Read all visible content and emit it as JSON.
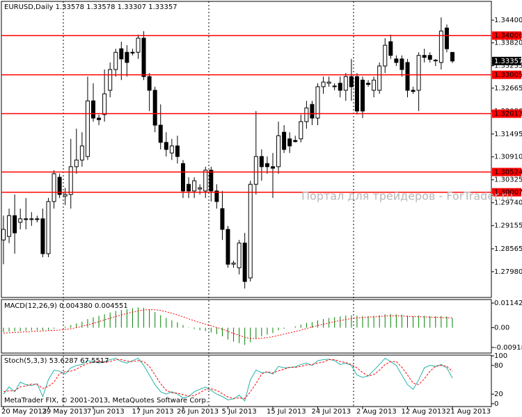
{
  "chart_data": [
    {
      "type": "candlestick",
      "title": "EURUSD,Daily  1.33578 1.33578 1.33307 1.33357",
      "watermark": "Портал для трейдеров - ForTrader.ru",
      "up_color": "#ffffff",
      "down_color": "#000000",
      "level_color": "#ff0000",
      "ylim": [
        1.27322,
        1.34879
      ],
      "yticks": [
        {
          "value": 1.344,
          "label": "1.34400"
        },
        {
          "value": 1.3382,
          "label": "1.33820"
        },
        1.33235,
        1.32665,
        {
          "value": 1.3208,
          "label": "1.32080"
        },
        1.31495,
        {
          "value": 1.3091,
          "label": "1.30910"
        },
        1.30325,
        {
          "value": 1.2974,
          "label": "1.29740"
        },
        1.29155,
        1.28565,
        {
          "value": 1.2798,
          "label": "1.27980"
        }
      ],
      "levels": [
        1.34006,
        1.33005,
        1.32013,
        1.30524,
        1.30007
      ],
      "categories": [
        "20 May 2013",
        null,
        null,
        null,
        null,
        null,
        null,
        null,
        "29 May 2013",
        null,
        null,
        null,
        null,
        null,
        null,
        null,
        "7 Jun 2013",
        null,
        null,
        null,
        null,
        null,
        null,
        null,
        "17 Jun 2013",
        null,
        null,
        null,
        null,
        null,
        null,
        null,
        "26 Jun 2013",
        null,
        null,
        null,
        null,
        null,
        null,
        null,
        "5 Jul 2013",
        null,
        null,
        null,
        null,
        null,
        null,
        null,
        "15 Jul 2013",
        null,
        null,
        null,
        null,
        null,
        null,
        null,
        "24 Jul 2013",
        null,
        null,
        null,
        null,
        null,
        null,
        null,
        "2 Aug 2013",
        null,
        null,
        null,
        null,
        null,
        null,
        null,
        "12 Aug 2013",
        null,
        null,
        null,
        null,
        null,
        null,
        null,
        "21 Aug 2013"
      ],
      "ohlc": [
        [
          1.2879,
          1.2941,
          1.2817,
          1.2906
        ],
        [
          1.2888,
          1.2959,
          1.2871,
          1.2941
        ],
        [
          1.2941,
          1.2995,
          1.2844,
          1.2897
        ],
        [
          1.2924,
          1.2959,
          1.2906,
          1.2933
        ],
        [
          1.2933,
          1.2986,
          1.2906,
          1.2931
        ],
        [
          1.2931,
          1.295,
          1.2915,
          1.2933
        ],
        [
          1.2933,
          1.2941,
          1.2924,
          1.2931
        ],
        [
          1.2933,
          1.2959,
          1.2835,
          1.2844
        ],
        [
          1.2844,
          1.2986,
          1.2835,
          1.2977
        ],
        [
          1.2977,
          1.3057,
          1.2959,
          1.3048
        ],
        [
          1.3039,
          1.3048,
          1.2986,
          1.2995
        ],
        [
          1.2991,
          1.3012,
          1.2968,
          1.2995
        ],
        [
          1.2995,
          1.3137,
          1.2959,
          1.3066
        ],
        [
          1.3066,
          1.3163,
          1.3048,
          1.3083
        ],
        [
          1.3083,
          1.3154,
          1.3066,
          1.3119
        ],
        [
          1.3092,
          1.3296,
          1.3083,
          1.3234
        ],
        [
          1.3234,
          1.3279,
          1.3181,
          1.319
        ],
        [
          1.319,
          1.3199,
          1.3172,
          1.3186
        ],
        [
          1.3199,
          1.3314,
          1.3181,
          1.3252
        ],
        [
          1.3261,
          1.3332,
          1.3243,
          1.3314
        ],
        [
          1.3314,
          1.3367,
          1.3296,
          1.3358
        ],
        [
          1.3367,
          1.3385,
          1.3287,
          1.3341
        ],
        [
          1.3358,
          1.3376,
          1.3296,
          1.3332
        ],
        [
          1.3358,
          1.3367,
          1.335,
          1.3356
        ],
        [
          1.3358,
          1.3403,
          1.3341,
          1.3394
        ],
        [
          1.3394,
          1.3412,
          1.3287,
          1.3296
        ],
        [
          1.3296,
          1.3305,
          1.3208,
          1.3261
        ],
        [
          1.3261,
          1.327,
          1.3154,
          1.3172
        ],
        [
          1.3172,
          1.3225,
          1.311,
          1.3128
        ],
        [
          1.3128,
          1.3154,
          1.3092,
          1.311
        ],
        [
          1.3101,
          1.3137,
          1.3083,
          1.3119
        ],
        [
          1.3119,
          1.3145,
          1.3074,
          1.3092
        ],
        [
          1.3074,
          1.3083,
          1.2986,
          1.3004
        ],
        [
          1.3021,
          1.3039,
          1.2986,
          1.3004
        ],
        [
          1.3004,
          1.3039,
          1.2986,
          1.303
        ],
        [
          1.3009,
          1.3021,
          1.2995,
          1.3012
        ],
        [
          1.3004,
          1.3066,
          1.2986,
          1.3057
        ],
        [
          1.3057,
          1.3066,
          1.2977,
          1.3004
        ],
        [
          1.3004,
          1.3021,
          1.2959,
          1.2977
        ],
        [
          1.2959,
          1.3004,
          1.2879,
          1.2906
        ],
        [
          1.2906,
          1.2915,
          1.2808,
          1.2817
        ],
        [
          1.2817,
          1.2826,
          1.2808,
          1.282
        ],
        [
          1.2808,
          1.2879,
          1.2791,
          1.2871
        ],
        [
          1.2871,
          1.2897,
          1.2755,
          1.2773
        ],
        [
          1.2782,
          1.303,
          1.2773,
          1.3021
        ],
        [
          1.3021,
          1.3208,
          1.2995,
          1.3092
        ],
        [
          1.3092,
          1.311,
          1.303,
          1.3066
        ],
        [
          1.3074,
          1.3092,
          1.3048,
          1.3066
        ],
        [
          1.3066,
          1.3101,
          1.2986,
          1.3062
        ],
        [
          1.3066,
          1.3181,
          1.3048,
          1.3145
        ],
        [
          1.3154,
          1.3172,
          1.3101,
          1.311
        ],
        [
          1.3137,
          1.3154,
          1.3101,
          1.3119
        ],
        [
          1.3133,
          1.3145,
          1.3128,
          1.313
        ],
        [
          1.3137,
          1.3199,
          1.3128,
          1.3181
        ],
        [
          1.3181,
          1.3234,
          1.3163,
          1.3216
        ],
        [
          1.3225,
          1.3234,
          1.3172,
          1.319
        ],
        [
          1.319,
          1.3279,
          1.3172,
          1.327
        ],
        [
          1.327,
          1.3296,
          1.3252,
          1.3282
        ],
        [
          1.3279,
          1.3296,
          1.327,
          1.3282
        ],
        [
          1.327,
          1.3279,
          1.3261,
          1.3272
        ],
        [
          1.3279,
          1.3296,
          1.3243,
          1.3261
        ],
        [
          1.3261,
          1.3305,
          1.3234,
          1.3296
        ],
        [
          1.3296,
          1.3341,
          1.3234,
          1.327
        ],
        [
          1.3296,
          1.3305,
          1.3199,
          1.3208
        ],
        [
          1.3287,
          1.3296,
          1.319,
          1.3208
        ],
        [
          1.3279,
          1.3287,
          1.327,
          1.3276
        ],
        [
          1.3261,
          1.3296,
          1.3243,
          1.3287
        ],
        [
          1.3261,
          1.3332,
          1.3252,
          1.3323
        ],
        [
          1.3323,
          1.3394,
          1.3305,
          1.3376
        ],
        [
          1.3385,
          1.3403,
          1.3341,
          1.335
        ],
        [
          1.3341,
          1.335,
          1.3323,
          1.3332
        ],
        [
          1.3341,
          1.335,
          1.3296,
          1.3314
        ],
        [
          1.3332,
          1.3341,
          1.3243,
          1.3261
        ],
        [
          1.3261,
          1.327,
          1.3252,
          1.3258
        ],
        [
          1.3261,
          1.3358,
          1.3208,
          1.335
        ],
        [
          1.335,
          1.3367,
          1.3332,
          1.3345
        ],
        [
          1.335,
          1.3358,
          1.3332,
          1.334
        ],
        [
          1.3336,
          1.3341,
          1.3323,
          1.3338
        ],
        [
          1.3332,
          1.3447,
          1.3314,
          1.3412
        ],
        [
          1.342,
          1.3429,
          1.3358,
          1.3367
        ],
        [
          1.33578,
          1.33578,
          1.33307,
          1.33357
        ]
      ]
    },
    {
      "type": "macd",
      "title": "MACD(12,26,9) 0.004380 0.004551",
      "ylim": [
        -0.0118,
        0.01306
      ],
      "yticks": [
        0.011425,
        {
          "value": 0,
          "label": "0.00"
        },
        -0.009187
      ],
      "series": [
        {
          "name": "MACD",
          "color": "#008000",
          "values": [
            -0.002,
            -0.0018,
            -0.0016,
            -0.0015,
            -0.0014,
            -0.0013,
            -0.0012,
            -0.0012,
            -0.001,
            -0.0005,
            0,
            0.0005,
            0.0012,
            0.002,
            0.0028,
            0.004,
            0.0048,
            0.0055,
            0.0062,
            0.007,
            0.0078,
            0.0082,
            0.0086,
            0.009,
            0.0094,
            0.0092,
            0.0085,
            0.0072,
            0.0058,
            0.0045,
            0.0034,
            0.0025,
            0.0012,
            0.0002,
            -0.0006,
            -0.0012,
            -0.0016,
            -0.0022,
            -0.003,
            -0.004,
            -0.0055,
            -0.0065,
            -0.0072,
            -0.008,
            -0.0068,
            -0.005,
            -0.004,
            -0.0032,
            -0.0025,
            -0.0012,
            -0.0005,
            0,
            0.0006,
            0.0014,
            0.0022,
            0.0026,
            0.0034,
            0.004,
            0.0045,
            0.0049,
            0.0052,
            0.0056,
            0.0058,
            0.0056,
            0.0054,
            0.0054,
            0.0055,
            0.0058,
            0.0062,
            0.0063,
            0.0062,
            0.006,
            0.0056,
            0.0054,
            0.0056,
            0.0055,
            0.0054,
            0.0053,
            0.0054,
            0.0052,
            0.00438
          ]
        },
        {
          "name": "Signal",
          "color": "#ff0000",
          "values": [
            -0.0025,
            -0.0024,
            -0.0022,
            -0.0021,
            -0.0019,
            -0.0018,
            -0.0016,
            -0.0015,
            -0.0014,
            -0.0013,
            -0.0011,
            -0.0008,
            -0.0005,
            0,
            0.0006,
            0.0013,
            0.002,
            0.0028,
            0.0036,
            0.0044,
            0.0052,
            0.0059,
            0.0066,
            0.0072,
            0.0078,
            0.0082,
            0.0084,
            0.0083,
            0.008,
            0.0074,
            0.0067,
            0.0059,
            0.005,
            0.0041,
            0.0032,
            0.0024,
            0.0016,
            0.0009,
            0.0001,
            -0.0007,
            -0.0017,
            -0.0027,
            -0.0036,
            -0.0045,
            -0.005,
            -0.0051,
            -0.0049,
            -0.0046,
            -0.0042,
            -0.0036,
            -0.003,
            -0.0024,
            -0.0018,
            -0.0011,
            -0.0004,
            0.0003,
            0.001,
            0.0016,
            0.0022,
            0.0028,
            0.0033,
            0.0038,
            0.0042,
            0.0045,
            0.0047,
            0.0049,
            0.005,
            0.0052,
            0.0054,
            0.0055,
            0.0055,
            0.0054,
            0.0053,
            0.0052,
            0.0051,
            0.005,
            0.0049,
            0.0048,
            0.0047,
            0.0046,
            0.004551
          ]
        }
      ]
    },
    {
      "type": "stochastic",
      "title": "Stoch(5,3,3) 53.6287 67.5517",
      "copyright": "MetaTrader FIX, © 2001-2013, MetaQuotes Software Corp.",
      "ylim": [
        -6,
        101.5
      ],
      "yticks": [
        100,
        80,
        20,
        0
      ],
      "series": [
        {
          "name": "Main",
          "color": "#20b2aa",
          "values": [
            20,
            35,
            25,
            45,
            40,
            38,
            42,
            15,
            50,
            70,
            68,
            62,
            75,
            80,
            82,
            90,
            88,
            85,
            88,
            92,
            95,
            88,
            85,
            90,
            95,
            80,
            60,
            40,
            25,
            20,
            25,
            20,
            12,
            15,
            25,
            30,
            35,
            28,
            20,
            15,
            8,
            10,
            18,
            6,
            50,
            70,
            65,
            66,
            62,
            78,
            75,
            76,
            77,
            82,
            85,
            80,
            90,
            92,
            93,
            90,
            82,
            85,
            80,
            60,
            55,
            58,
            70,
            82,
            95,
            88,
            80,
            60,
            40,
            30,
            50,
            75,
            80,
            78,
            82,
            75,
            53.6287
          ]
        },
        {
          "name": "Signal",
          "color": "#ff0000",
          "values": [
            25,
            27,
            27,
            35,
            37,
            41,
            40,
            32,
            36,
            45,
            63,
            67,
            68,
            72,
            79,
            84,
            87,
            88,
            87,
            88,
            92,
            92,
            89,
            88,
            90,
            88,
            78,
            60,
            42,
            28,
            23,
            22,
            19,
            16,
            17,
            23,
            30,
            31,
            28,
            21,
            14,
            11,
            12,
            11,
            25,
            42,
            62,
            67,
            64,
            69,
            72,
            76,
            76,
            78,
            81,
            82,
            85,
            87,
            92,
            92,
            88,
            86,
            82,
            75,
            65,
            58,
            61,
            70,
            82,
            88,
            88,
            76,
            60,
            43,
            40,
            52,
            68,
            78,
            80,
            78,
            67.5517
          ]
        }
      ]
    }
  ]
}
